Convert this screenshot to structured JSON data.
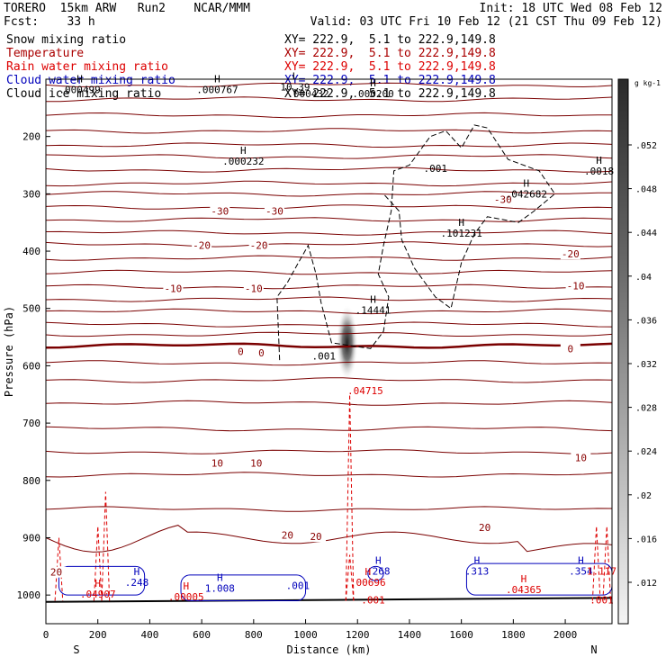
{
  "header": {
    "model": "TORERO  15km ARW   Run2    NCAR/MMM",
    "init": "Init: 18 UTC Wed 08 Feb 12",
    "fcst": "Fcst:    33 h",
    "valid": "Valid: 03 UTC Fri 10 Feb 12 (21 CST Thu 09 Feb 12)"
  },
  "legend": [
    {
      "name": "Snow mixing ratio",
      "xy": "XY= 222.9,  5.1 to 222.9,149.8",
      "color": "#000000"
    },
    {
      "name": "Temperature",
      "xy": "XY= 222.9,  5.1 to 222.9,149.8",
      "color": "#aa0000"
    },
    {
      "name": "Rain water mixing ratio",
      "xy": "XY= 222.9,  5.1 to 222.9,149.8",
      "color": "#dd0000"
    },
    {
      "name": "Cloud water mixing ratio",
      "xy": "XY= 222.9,  5.1 to 222.9,149.8",
      "color": "#0000bb"
    },
    {
      "name": "Cloud ice mixing ratio",
      "xy": "XY= 222.9,  5.1 to 222.9,149.8",
      "color": "#000000"
    }
  ],
  "chart_data": {
    "type": "contour",
    "xlabel": "Distance (km)",
    "ylabel": "Pressure (hPa)",
    "xlim": [
      0,
      2180
    ],
    "ylim": [
      1050,
      100
    ],
    "x_ticks": [
      0,
      200,
      400,
      600,
      800,
      1000,
      1200,
      1400,
      1600,
      1800,
      2000
    ],
    "y_ticks": [
      200,
      300,
      400,
      500,
      600,
      700,
      800,
      900,
      1000
    ],
    "x_endpoints": {
      "left": "S",
      "right": "N"
    },
    "colorbar": {
      "unit": "g kg-1",
      "ticks": [
        ".052",
        ".048",
        ".044",
        ".04",
        ".036",
        ".032",
        ".028",
        ".024",
        ".02",
        ".016",
        ".012"
      ]
    },
    "temperature_contour_labels": [
      {
        "value": "-30",
        "x": 670,
        "p": 330
      },
      {
        "value": "-30",
        "x": 880,
        "p": 330
      },
      {
        "value": "-30",
        "x": 1760,
        "p": 310
      },
      {
        "value": "-20",
        "x": 600,
        "p": 390
      },
      {
        "value": "-20",
        "x": 820,
        "p": 390
      },
      {
        "value": "-20",
        "x": 2020,
        "p": 405
      },
      {
        "value": "-10",
        "x": 490,
        "p": 465
      },
      {
        "value": "-10",
        "x": 800,
        "p": 465
      },
      {
        "value": "-10",
        "x": 2040,
        "p": 460
      },
      {
        "value": "0",
        "x": 750,
        "p": 575
      },
      {
        "value": "0",
        "x": 830,
        "p": 577
      },
      {
        "value": "0",
        "x": 2020,
        "p": 570
      },
      {
        "value": "10",
        "x": 660,
        "p": 770
      },
      {
        "value": "10",
        "x": 810,
        "p": 770
      },
      {
        "value": "10",
        "x": 2060,
        "p": 760
      },
      {
        "value": "20",
        "x": 930,
        "p": 895
      },
      {
        "value": "20",
        "x": 1040,
        "p": 898
      },
      {
        "value": "20",
        "x": 1690,
        "p": 882
      },
      {
        "value": "20",
        "x": 40,
        "p": 960
      }
    ],
    "extrema": [
      {
        "label": "H",
        "value": ".000499",
        "x": 130,
        "p": 115,
        "color": "#000000"
      },
      {
        "label": "H",
        "value": ".000767",
        "x": 660,
        "p": 115,
        "color": "#000000"
      },
      {
        "label": "L",
        "value": "10.39",
        "x": 960,
        "p": 110,
        "color": "#000000"
      },
      {
        "label": "",
        "value": ".000432",
        "x": 1010,
        "p": 122,
        "color": "#000000"
      },
      {
        "label": "H",
        "value": ".000200",
        "x": 1260,
        "p": 122,
        "color": "#000000"
      },
      {
        "label": "H",
        "value": ".000232",
        "x": 760,
        "p": 240,
        "color": "#000000"
      },
      {
        "label": "",
        "value": ".001",
        "x": 1500,
        "p": 252,
        "color": "#000000"
      },
      {
        "label": "H",
        "value": ".0018",
        "x": 2130,
        "p": 257,
        "color": "#000000"
      },
      {
        "label": "H",
        "value": ".042682",
        "x": 1850,
        "p": 297,
        "color": "#000000"
      },
      {
        "label": "H",
        "value": ".101231",
        "x": 1600,
        "p": 365,
        "color": "#000000"
      },
      {
        "label": "H",
        "value": ".14441",
        "x": 1260,
        "p": 500,
        "color": "#000000"
      },
      {
        "label": "",
        "value": ".001",
        "x": 1070,
        "p": 580,
        "color": "#000000"
      },
      {
        "label": "",
        "value": ".04715",
        "x": 1230,
        "p": 640,
        "color": "#dd0000"
      },
      {
        "label": "H",
        "value": ".248",
        "x": 350,
        "p": 975,
        "color": "#0000bb"
      },
      {
        "label": "H",
        "value": ".04907",
        "x": 200,
        "p": 995,
        "color": "#dd0000"
      },
      {
        "label": "H",
        "value": ".00005",
        "x": 540,
        "p": 1000,
        "color": "#dd0000"
      },
      {
        "label": "H",
        "value": "1.008",
        "x": 670,
        "p": 985,
        "color": "#0000bb"
      },
      {
        "label": "",
        "value": ".001",
        "x": 970,
        "p": 980,
        "color": "#0000bb"
      },
      {
        "label": "H",
        "value": ".268",
        "x": 1280,
        "p": 955,
        "color": "#0000bb"
      },
      {
        "label": "H",
        "value": ".00696",
        "x": 1240,
        "p": 975,
        "color": "#dd0000"
      },
      {
        "label": "",
        "value": ".001",
        "x": 1260,
        "p": 1005,
        "color": "#dd0000"
      },
      {
        "label": "H",
        "value": ".313",
        "x": 1660,
        "p": 955,
        "color": "#0000bb"
      },
      {
        "label": "H",
        "value": ".04365",
        "x": 1840,
        "p": 987,
        "color": "#dd0000"
      },
      {
        "label": "H",
        "value": ".354",
        "x": 2060,
        "p": 955,
        "color": "#0000bb"
      },
      {
        "label": "",
        "value": "1.117",
        "x": 2140,
        "p": 955,
        "color": "#dd0000"
      },
      {
        "label": "",
        "value": ".001",
        "x": 2140,
        "p": 1005,
        "color": "#dd0000"
      }
    ]
  }
}
